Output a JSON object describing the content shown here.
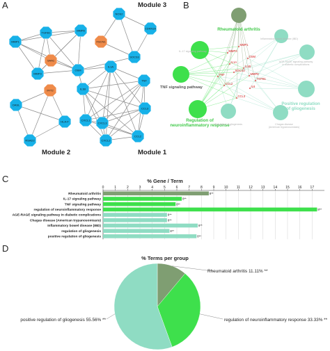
{
  "panels": {
    "a": "A",
    "b": "B",
    "c": "C",
    "d": "D"
  },
  "modules": {
    "m3": "Module 3",
    "m2": "Module 2",
    "m1": "Module 1"
  },
  "network_nodes": [
    {
      "id": "TGFB1",
      "label": "TGFB1",
      "kind": "blue"
    },
    {
      "id": "MMP1",
      "label": "MMP1",
      "kind": "blue"
    },
    {
      "id": "MMP8",
      "label": "MMP8",
      "kind": "blue"
    },
    {
      "id": "SAA1",
      "label": "SAA1",
      "kind": "orange"
    },
    {
      "id": "MMP3",
      "label": "MMP3",
      "kind": "blue"
    },
    {
      "id": "OSM",
      "label": "OSM",
      "kind": "blue"
    },
    {
      "id": "NOS2",
      "label": "NOS2",
      "kind": "blue"
    },
    {
      "id": "CDKN1A",
      "label": "CDKN1A",
      "kind": "blue"
    },
    {
      "id": "FSCN1",
      "label": "FSCN1",
      "kind": "orange"
    },
    {
      "id": "SOCS3",
      "label": "SOCS3",
      "kind": "blue"
    },
    {
      "id": "IL1A",
      "label": "IL1A",
      "kind": "blue"
    },
    {
      "id": "IL1B",
      "label": "IL1B",
      "kind": "blue"
    },
    {
      "id": "TNF",
      "label": "TNF",
      "kind": "blue"
    },
    {
      "id": "CCL3",
      "label": "CCL3",
      "kind": "blue"
    },
    {
      "id": "CCL2",
      "label": "CCL2",
      "kind": "blue"
    },
    {
      "id": "CXCL2",
      "label": "CXCL2",
      "kind": "blue"
    },
    {
      "id": "CXCL3",
      "label": "CXCL3",
      "kind": "blue"
    },
    {
      "id": "CXCL1",
      "label": "CXCL1",
      "kind": "blue"
    },
    {
      "id": "IFIT2",
      "label": "IFIT2",
      "kind": "orange"
    },
    {
      "id": "OASL",
      "label": "OASL",
      "kind": "blue"
    },
    {
      "id": "HLA-F",
      "label": "HLA-F",
      "kind": "blue"
    },
    {
      "id": "RSAD2",
      "label": "RSAD2",
      "kind": "blue"
    }
  ],
  "network_edges": [
    [
      "TGFB1",
      "MMP1"
    ],
    [
      "TGFB1",
      "MMP8"
    ],
    [
      "TGFB1",
      "SAA1"
    ],
    [
      "TGFB1",
      "MMP3"
    ],
    [
      "TGFB1",
      "OSM"
    ],
    [
      "MMP1",
      "MMP8"
    ],
    [
      "MMP1",
      "SAA1"
    ],
    [
      "MMP1",
      "MMP3"
    ],
    [
      "MMP1",
      "OSM"
    ],
    [
      "MMP8",
      "SAA1"
    ],
    [
      "MMP8",
      "MMP3"
    ],
    [
      "MMP8",
      "OSM"
    ],
    [
      "SAA1",
      "MMP3"
    ],
    [
      "SAA1",
      "OSM"
    ],
    [
      "MMP3",
      "OSM"
    ],
    [
      "NOS2",
      "CDKN1A"
    ],
    [
      "NOS2",
      "FSCN1"
    ],
    [
      "NOS2",
      "SOCS3"
    ],
    [
      "CDKN1A",
      "SOCS3"
    ],
    [
      "FSCN1",
      "SOCS3"
    ],
    [
      "OSM",
      "IL1A"
    ],
    [
      "OSM",
      "IL1B"
    ],
    [
      "OSM",
      "SOCS3"
    ],
    [
      "IL1A",
      "IL1B"
    ],
    [
      "IL1A",
      "TNF"
    ],
    [
      "IL1A",
      "CCL3"
    ],
    [
      "IL1A",
      "CCL2"
    ],
    [
      "IL1A",
      "CXCL2"
    ],
    [
      "IL1A",
      "CXCL3"
    ],
    [
      "IL1A",
      "CXCL1"
    ],
    [
      "IL1B",
      "TNF"
    ],
    [
      "IL1B",
      "CCL3"
    ],
    [
      "IL1B",
      "CCL2"
    ],
    [
      "IL1B",
      "CXCL2"
    ],
    [
      "IL1B",
      "CXCL3"
    ],
    [
      "IL1B",
      "CXCL1"
    ],
    [
      "TNF",
      "CCL3"
    ],
    [
      "TNF",
      "CCL2"
    ],
    [
      "TNF",
      "CXCL2"
    ],
    [
      "TNF",
      "CXCL3"
    ],
    [
      "TNF",
      "CXCL1"
    ],
    [
      "CCL3",
      "CCL2"
    ],
    [
      "CCL3",
      "CXCL2"
    ],
    [
      "CCL3",
      "CXCL3"
    ],
    [
      "CCL3",
      "CXCL1"
    ],
    [
      "CCL2",
      "CXCL2"
    ],
    [
      "CCL2",
      "CXCL3"
    ],
    [
      "CCL2",
      "CXCL1"
    ],
    [
      "CXCL2",
      "CXCL3"
    ],
    [
      "CXCL2",
      "CXCL1"
    ],
    [
      "CXCL3",
      "CXCL1"
    ],
    [
      "IFIT2",
      "OASL"
    ],
    [
      "IFIT2",
      "HLA-F"
    ],
    [
      "IFIT2",
      "RSAD2"
    ],
    [
      "OASL",
      "HLA-F"
    ],
    [
      "OASL",
      "RSAD2"
    ],
    [
      "HLA-F",
      "RSAD2"
    ]
  ],
  "colors": {
    "node_blue": "#17b1e8",
    "node_orange": "#ef8b4a",
    "edge_gray": "#8a8a8a",
    "term_green": "#3ee04c",
    "term_teal": "#8fdcc3",
    "term_olive": "#7f9e72",
    "gene_red": "#d01818"
  },
  "term_nodes": [
    {
      "id": "ra",
      "label": "Rheumatoid arthritis",
      "color": "olive",
      "label_color": "green",
      "bold": true
    },
    {
      "id": "il17",
      "label": "IL-17 signaling pathway",
      "color": "green",
      "label_color": "light",
      "bold": false
    },
    {
      "id": "ibd",
      "label": "Inflammatory bowel disease (IBD)",
      "color": "teal",
      "label_color": "light",
      "bold": false
    },
    {
      "id": "age",
      "label": "AGE-RAGE signaling pathway in diabetic complications",
      "color": "teal",
      "label_color": "light",
      "bold": false
    },
    {
      "id": "tnf",
      "label": "TNF signaling pathway",
      "color": "green",
      "label_color": "dark",
      "bold": true
    },
    {
      "id": "pos",
      "label": "Positive regulation of gliogenesis",
      "color": "teal",
      "label_color": "teal",
      "bold": true
    },
    {
      "id": "neu",
      "label": "Regulation of neuroinflammatory response",
      "color": "green",
      "label_color": "green",
      "bold": true
    },
    {
      "id": "gli",
      "label": "Regulation of gliogenesis",
      "color": "teal",
      "label_color": "light",
      "bold": false
    },
    {
      "id": "cha",
      "label": "Chagas disease (American trypanosomiasis)",
      "color": "teal",
      "label_color": "light",
      "bold": false
    }
  ],
  "gene_labels": [
    "MMP3",
    "MMP1",
    "IL1A",
    "IL1B",
    "SOCS3",
    "TNF",
    "MMP8",
    "TGFB1",
    "CCL2",
    "CCL3",
    "IL6",
    "OSM"
  ],
  "chart_data": [
    {
      "type": "bar",
      "title": "% Gene / Term",
      "categories": [
        "Rheumatoid arthritis",
        "IL-17 signaling pathway",
        "TNF signaling pathway",
        "regulation of neuroinflammatory response",
        "AGE-RAGE signaling pathway in diabetic complications",
        "Chagas disease (American trypanosomiasis)",
        "Inflammatory bowel disease (IBD)",
        "regulation of gliogenesis",
        "positive regulation of gliogenesis"
      ],
      "values": [
        8.6,
        6.4,
        5.9,
        17.4,
        5.2,
        5.2,
        7.7,
        5.4,
        7.6
      ],
      "value_labels": [
        "8**",
        "8**",
        "8**",
        "8**",
        "8**",
        "8**",
        "8**",
        "8**",
        "8**"
      ],
      "bar_colors": [
        "olive",
        "green",
        "green",
        "green",
        "teal",
        "teal",
        "teal",
        "teal",
        "teal"
      ],
      "xticks": [
        0,
        1,
        2,
        3,
        4,
        5,
        6,
        7,
        8,
        9,
        10,
        11,
        12,
        13,
        14,
        15,
        16,
        17
      ],
      "xlim": [
        0,
        18
      ],
      "grid": true
    },
    {
      "type": "pie",
      "title": "% Terms per group",
      "slices": [
        {
          "label": "Rheumatoid arthritis 11.11% **",
          "value": 11.11,
          "color": "olive"
        },
        {
          "label": "regulation of neuroinflammatory response 33.33% **",
          "value": 33.33,
          "color": "green"
        },
        {
          "label": "positive regulation of gliogenesis 55.56% **",
          "value": 55.56,
          "color": "teal"
        }
      ]
    }
  ]
}
